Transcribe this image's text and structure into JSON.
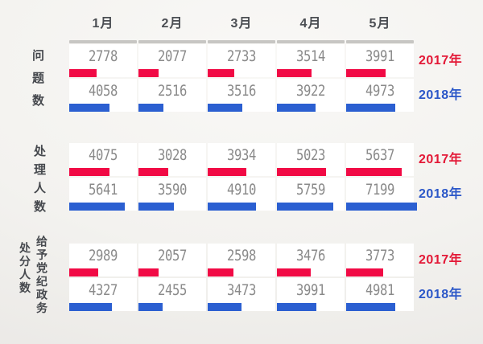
{
  "chart_data": {
    "type": "bar",
    "orientation": "horizontal",
    "title": "",
    "categories": [
      "1月",
      "2月",
      "3月",
      "4月",
      "5月"
    ],
    "series_meta": [
      {
        "name": "2017年",
        "text_color": "#e31937",
        "bar_color": "#f10a45"
      },
      {
        "name": "2018年",
        "text_color": "#2b57c8",
        "bar_color": "#2b5fd1"
      }
    ],
    "groups": [
      {
        "label": "问题数",
        "label_columns": [
          "问题数"
        ],
        "rows": [
          {
            "year": "2017年",
            "values": [
              2778,
              2077,
              2733,
              3514,
              3991
            ]
          },
          {
            "year": "2018年",
            "values": [
              4058,
              2516,
              3516,
              3922,
              4973
            ]
          }
        ]
      },
      {
        "label": "处理人数",
        "label_columns": [
          "处理人数"
        ],
        "rows": [
          {
            "year": "2017年",
            "values": [
              4075,
              3028,
              3934,
              5023,
              5637
            ]
          },
          {
            "year": "2018年",
            "values": [
              5641,
              3590,
              4910,
              5759,
              7199
            ]
          }
        ]
      },
      {
        "label": "给予党纪政务处分人数",
        "label_columns": [
          "给予党纪政务",
          "处分人数"
        ],
        "rows": [
          {
            "year": "2017年",
            "values": [
              2989,
              2057,
              2598,
              3476,
              3773
            ]
          },
          {
            "year": "2018年",
            "values": [
              4327,
              2455,
              3473,
              3991,
              4981
            ]
          }
        ]
      }
    ],
    "full_cell_value": 6885,
    "colors": {
      "header_rule": "#c7c6c3",
      "number_text": "#8a8a8a",
      "label_text": "#46494e",
      "cell_background": "#ffffff"
    },
    "legend_position": "right"
  }
}
